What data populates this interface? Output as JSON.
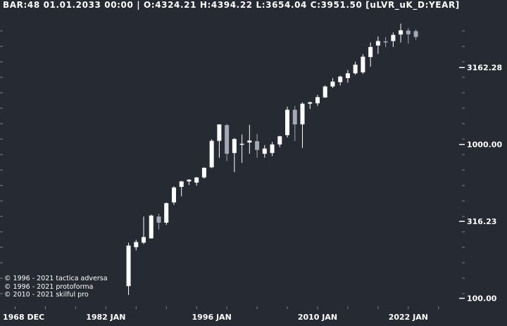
{
  "header": {
    "bar": "BAR:48",
    "datetime": "01.01.2033 00:00",
    "ohlc": "| O:4324.21 H:4394.22 L:3654.04 C:3951.50",
    "symbol": "[uLVR_uK_D:YEAR]"
  },
  "copyright": [
    "© 1996 - 2021 tactica adversa",
    "© 1996 - 2021 protoforma",
    "© 2010 - 2021 skilful pro"
  ],
  "colors": {
    "background": "#262a33",
    "up": "#ffffff",
    "down": "#a4a7b4",
    "text": "#ffffff"
  },
  "chart_data": {
    "type": "candlestick",
    "scale": "log",
    "ylim": [
      85,
      7500
    ],
    "y_ticks": [
      {
        "value": 100,
        "label": "100.00"
      },
      {
        "value": 316.23,
        "label": "316.23"
      },
      {
        "value": 1000,
        "label": "1000.00"
      },
      {
        "value": 3162.28,
        "label": "3162.28"
      }
    ],
    "x_ticks": [
      {
        "year": 1968,
        "label": "1968 DEC"
      },
      {
        "year": 1982,
        "label": "1982 JAN"
      },
      {
        "year": 1996,
        "label": "1996 JAN"
      },
      {
        "year": 2010,
        "label": "2010 JAN"
      },
      {
        "year": 2022,
        "label": "2022 JAN"
      }
    ],
    "x_range": [
      1968,
      2029
    ],
    "candles": [
      {
        "year": 1985,
        "o": 120,
        "h": 230,
        "l": 105,
        "c": 220
      },
      {
        "year": 1986,
        "o": 215,
        "h": 240,
        "l": 205,
        "c": 232
      },
      {
        "year": 1987,
        "o": 230,
        "h": 340,
        "l": 225,
        "c": 250
      },
      {
        "year": 1988,
        "o": 245,
        "h": 350,
        "l": 245,
        "c": 345
      },
      {
        "year": 1989,
        "o": 340,
        "h": 355,
        "l": 280,
        "c": 310
      },
      {
        "year": 1990,
        "o": 310,
        "h": 420,
        "l": 300,
        "c": 415
      },
      {
        "year": 1991,
        "o": 420,
        "h": 535,
        "l": 405,
        "c": 525
      },
      {
        "year": 1992,
        "o": 530,
        "h": 580,
        "l": 460,
        "c": 575
      },
      {
        "year": 1993,
        "o": 575,
        "h": 595,
        "l": 545,
        "c": 590
      },
      {
        "year": 1994,
        "o": 565,
        "h": 615,
        "l": 540,
        "c": 610
      },
      {
        "year": 1995,
        "o": 610,
        "h": 710,
        "l": 600,
        "c": 705
      },
      {
        "year": 1996,
        "o": 710,
        "h": 1080,
        "l": 700,
        "c": 1055
      },
      {
        "year": 1997,
        "o": 1055,
        "h": 1350,
        "l": 820,
        "c": 1350
      },
      {
        "year": 1998,
        "o": 1335,
        "h": 1360,
        "l": 780,
        "c": 870
      },
      {
        "year": 1999,
        "o": 880,
        "h": 1100,
        "l": 660,
        "c": 1085
      },
      {
        "year": 2000,
        "o": 1000,
        "h": 1160,
        "l": 760,
        "c": 1010
      },
      {
        "year": 2001,
        "o": 1030,
        "h": 1340,
        "l": 870,
        "c": 1060
      },
      {
        "year": 2002,
        "o": 1050,
        "h": 1170,
        "l": 820,
        "c": 920
      },
      {
        "year": 2003,
        "o": 870,
        "h": 990,
        "l": 820,
        "c": 940
      },
      {
        "year": 2004,
        "o": 880,
        "h": 1040,
        "l": 840,
        "c": 1000
      },
      {
        "year": 2005,
        "o": 1000,
        "h": 1140,
        "l": 960,
        "c": 1130
      },
      {
        "year": 2006,
        "o": 1150,
        "h": 1760,
        "l": 1110,
        "c": 1680
      },
      {
        "year": 2007,
        "o": 1680,
        "h": 1780,
        "l": 1050,
        "c": 1350
      },
      {
        "year": 2008,
        "o": 1350,
        "h": 1880,
        "l": 950,
        "c": 1840
      },
      {
        "year": 2009,
        "o": 1840,
        "h": 1900,
        "l": 1700,
        "c": 1880
      },
      {
        "year": 2010,
        "o": 1850,
        "h": 2100,
        "l": 1780,
        "c": 2030
      },
      {
        "year": 2011,
        "o": 2020,
        "h": 2420,
        "l": 2010,
        "c": 2380
      },
      {
        "year": 2012,
        "o": 2380,
        "h": 2700,
        "l": 2330,
        "c": 2560
      },
      {
        "year": 2013,
        "o": 2540,
        "h": 2800,
        "l": 2420,
        "c": 2760
      },
      {
        "year": 2014,
        "o": 2700,
        "h": 3050,
        "l": 2520,
        "c": 2900
      },
      {
        "year": 2015,
        "o": 2900,
        "h": 3450,
        "l": 2840,
        "c": 3300
      },
      {
        "year": 2016,
        "o": 2940,
        "h": 3860,
        "l": 2870,
        "c": 3720
      },
      {
        "year": 2017,
        "o": 3700,
        "h": 4600,
        "l": 3200,
        "c": 4300
      },
      {
        "year": 2018,
        "o": 4400,
        "h": 5030,
        "l": 3880,
        "c": 4700
      },
      {
        "year": 2019,
        "o": 4680,
        "h": 5000,
        "l": 4300,
        "c": 4600
      },
      {
        "year": 2020,
        "o": 4700,
        "h": 5350,
        "l": 4300,
        "c": 5150
      },
      {
        "year": 2021,
        "o": 5180,
        "h": 6100,
        "l": 4600,
        "c": 5520
      },
      {
        "year": 2022,
        "o": 5500,
        "h": 5700,
        "l": 4520,
        "c": 5200
      },
      {
        "year": 2023,
        "o": 5450,
        "h": 5600,
        "l": 4800,
        "c": 5000
      }
    ]
  }
}
